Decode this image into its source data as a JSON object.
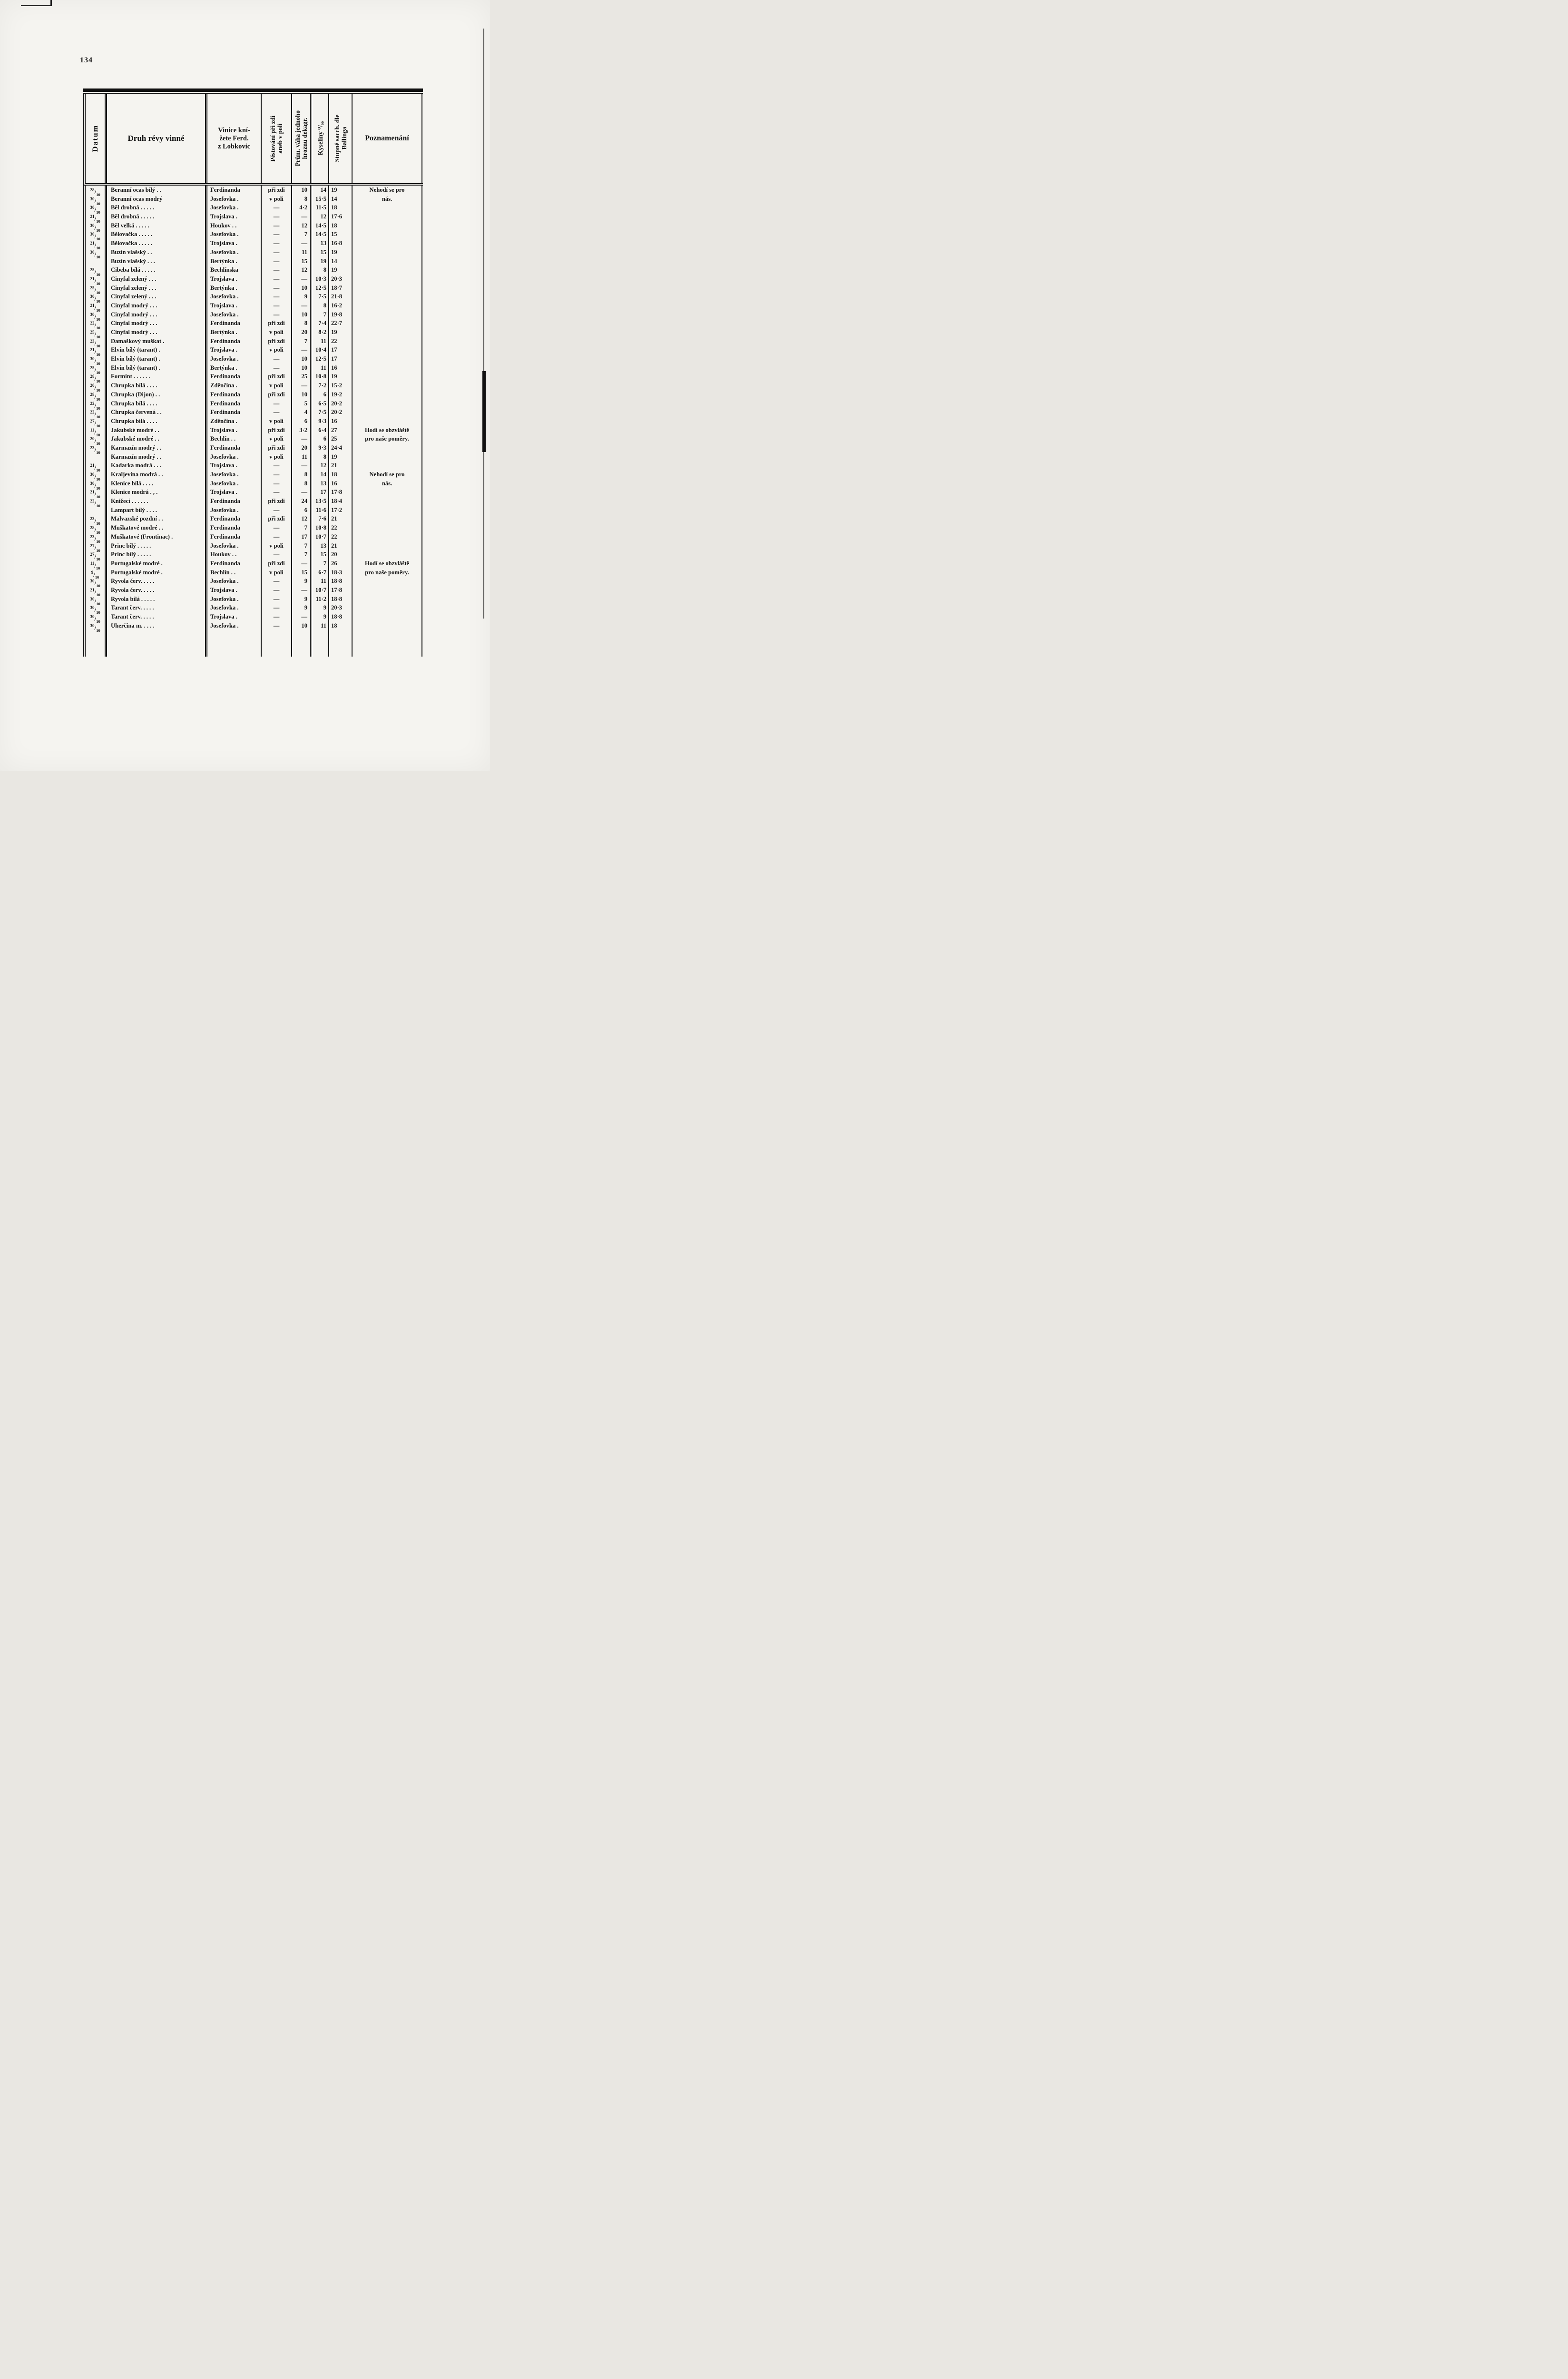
{
  "page": {
    "number": "134"
  },
  "header": {
    "datum": "Datum",
    "druh": "Druh révy vinné",
    "vinice_lines": [
      "Vinice kní-",
      "žete Ferd.",
      "z Lobkovic"
    ],
    "pestovani_lines": [
      "Pěstování při zdi",
      "aneb v poli"
    ],
    "vaha_lines": [
      "Prům. váha jednoho",
      "hroznu dekagr."
    ],
    "kyseliny": "Kyseliny ⁰/₀₀",
    "stupne_lines": [
      "Stupně sacch. dle",
      "Ballinga"
    ],
    "poznamenani": "Poznamenání"
  },
  "table": {
    "rows": [
      {
        "datum_num": "28",
        "datum_den": "10",
        "druh": "Beranní ocas bílý . .",
        "vinice": "Ferdinanda",
        "pestovani": "při zdi",
        "vaha": "10",
        "kyseliny": "14",
        "stupne": "19",
        "poznamenani": "Nehodí se pro"
      },
      {
        "datum_num": "30",
        "datum_den": "10",
        "druh": "Beranní ocas modrý",
        "vinice": "Josefovka .",
        "pestovani": "v poli",
        "vaha": "8",
        "kyseliny": "15·5",
        "stupne": "14",
        "poznamenani": "nás."
      },
      {
        "datum_num": "30",
        "datum_den": "10",
        "druh": "Běl drobná . . . . .",
        "vinice": "Josefovka .",
        "pestovani": "—",
        "vaha": "4·2",
        "kyseliny": "11·5",
        "stupne": "18",
        "poznamenani": ""
      },
      {
        "datum_num": "21",
        "datum_den": "10",
        "druh": "Běl drobná . . . . .",
        "vinice": "Trojslava .",
        "pestovani": "—",
        "vaha": "—",
        "kyseliny": "12",
        "stupne": "17·6",
        "poznamenani": ""
      },
      {
        "datum_num": "30",
        "datum_den": "10",
        "druh": "Běl velká . . . . .",
        "vinice": "Houkov . .",
        "pestovani": "—",
        "vaha": "12",
        "kyseliny": "14·5",
        "stupne": "18",
        "poznamenani": ""
      },
      {
        "datum_num": "30",
        "datum_den": "10",
        "druh": "Bělovačka . . . . .",
        "vinice": "Josefovka .",
        "pestovani": "—",
        "vaha": "7",
        "kyseliny": "14·5",
        "stupne": "15",
        "poznamenani": ""
      },
      {
        "datum_num": "21",
        "datum_den": "10",
        "druh": "Bělovačka . . . . .",
        "vinice": "Trojslava .",
        "pestovani": "—",
        "vaha": "—",
        "kyseliny": "13",
        "stupne": "16·8",
        "poznamenani": ""
      },
      {
        "datum_num": "30",
        "datum_den": "10",
        "druh": "Buzín vlašský . .",
        "vinice": "Josefovka .",
        "pestovani": "—",
        "vaha": "11",
        "kyseliny": "15",
        "stupne": "19",
        "poznamenani": ""
      },
      {
        "datum_num": "",
        "datum_den": "",
        "druh": "Buzín vlašský . . .",
        "vinice": "Bertýnka .",
        "pestovani": "—",
        "vaha": "15",
        "kyseliny": "19",
        "stupne": "14",
        "poznamenani": ""
      },
      {
        "datum_num": "25",
        "datum_den": "10",
        "druh": "Cibeba bílá . . . . .",
        "vinice": "Bechlínska",
        "pestovani": "—",
        "vaha": "12",
        "kyseliny": "8",
        "stupne": "19",
        "poznamenani": ""
      },
      {
        "datum_num": "21",
        "datum_den": "10",
        "druh": "Cinyfal zelený . . .",
        "vinice": "Trojslava .",
        "pestovani": "—",
        "vaha": "—",
        "kyseliny": "10·3",
        "stupne": "20·3",
        "poznamenani": ""
      },
      {
        "datum_num": "25",
        "datum_den": "10",
        "druh": "Cinyfal zelený . . .",
        "vinice": "Bertýnka .",
        "pestovani": "—",
        "vaha": "10",
        "kyseliny": "12·5",
        "stupne": "18·7",
        "poznamenani": ""
      },
      {
        "datum_num": "30",
        "datum_den": "10",
        "druh": "Cinyfal zelený . . .",
        "vinice": "Josefovka .",
        "pestovani": "—",
        "vaha": "9",
        "kyseliny": "7·5",
        "stupne": "21·8",
        "poznamenani": ""
      },
      {
        "datum_num": "21",
        "datum_den": "10",
        "druh": "Cinyfal modrý . . .",
        "vinice": "Trojslava .",
        "pestovani": "—",
        "vaha": "—",
        "kyseliny": "8",
        "stupne": "16·2",
        "poznamenani": ""
      },
      {
        "datum_num": "30",
        "datum_den": "10",
        "druh": "Cinyfal modrý . . .",
        "vinice": "Josefovka .",
        "pestovani": "—",
        "vaha": "10",
        "kyseliny": "7",
        "stupne": "19·8",
        "poznamenani": ""
      },
      {
        "datum_num": "22",
        "datum_den": "10",
        "druh": "Cinyfal modrý . . .",
        "vinice": "Ferdinanda",
        "pestovani": "při zdi",
        "vaha": "8",
        "kyseliny": "7·4",
        "stupne": "22·7",
        "poznamenani": ""
      },
      {
        "datum_num": "25",
        "datum_den": "10",
        "druh": "Cinyfal modrý . . .",
        "vinice": "Bertýnka .",
        "pestovani": "v poli",
        "vaha": "20",
        "kyseliny": "8·2",
        "stupne": "19",
        "poznamenani": ""
      },
      {
        "datum_num": "23",
        "datum_den": "10",
        "druh": "Damaškový muškat .",
        "vinice": "Ferdinanda",
        "pestovani": "při zdi",
        "vaha": "7",
        "kyseliny": "11",
        "stupne": "22",
        "poznamenani": ""
      },
      {
        "datum_num": "21",
        "datum_den": "10",
        "druh": "Elvín bílý (tarant) .",
        "vinice": "Trojslava .",
        "pestovani": "v poli",
        "vaha": "—",
        "kyseliny": "10·4",
        "stupne": "17",
        "poznamenani": ""
      },
      {
        "datum_num": "30",
        "datum_den": "10",
        "druh": "Elvín bílý (tarant) .",
        "vinice": "Josefovka .",
        "pestovani": "—",
        "vaha": "10",
        "kyseliny": "12·5",
        "stupne": "17",
        "poznamenani": ""
      },
      {
        "datum_num": "25",
        "datum_den": "10",
        "druh": "Elvín bílý (tarant) .",
        "vinice": "Bertýnka .",
        "pestovani": "—",
        "vaha": "10",
        "kyseliny": "11",
        "stupne": "16",
        "poznamenani": ""
      },
      {
        "datum_num": "28",
        "datum_den": "10",
        "druh": "Formint . . . . . .",
        "vinice": "Ferdinanda",
        "pestovani": "při zdi",
        "vaha": "25",
        "kyseliny": "10·8",
        "stupne": "19",
        "poznamenani": ""
      },
      {
        "datum_num": "20",
        "datum_den": "10",
        "druh": "Chrupka bílá . . . .",
        "vinice": "Zděnčina .",
        "pestovani": "v poli",
        "vaha": "—",
        "kyseliny": "7·2",
        "stupne": "15·2",
        "poznamenani": ""
      },
      {
        "datum_num": "28",
        "datum_den": "10",
        "druh": "Chrupka (Dijon) . .",
        "vinice": "Ferdinanda",
        "pestovani": "při zdi",
        "vaha": "10",
        "kyseliny": "6",
        "stupne": "19·2",
        "poznamenani": ""
      },
      {
        "datum_num": "22",
        "datum_den": "10",
        "druh": "Chrupka bílá . . . .",
        "vinice": "Ferdinanda",
        "pestovani": "—",
        "vaha": "5",
        "kyseliny": "6·5",
        "stupne": "20·2",
        "poznamenani": ""
      },
      {
        "datum_num": "22",
        "datum_den": "10",
        "druh": "Chrupka červená . .",
        "vinice": "Ferdinanda",
        "pestovani": "—",
        "vaha": "4",
        "kyseliny": "7·5",
        "stupne": "20·2",
        "poznamenani": ""
      },
      {
        "datum_num": "27",
        "datum_den": "10",
        "druh": "Chrupka bílá . . . .",
        "vinice": "Zděnčina .",
        "pestovani": "v poli",
        "vaha": "6",
        "kyseliny": "9·3",
        "stupne": "16",
        "poznamenani": ""
      },
      {
        "datum_num": "11",
        "datum_den": "10",
        "druh": "Jakubské modré . .",
        "vinice": "Trojslava .",
        "pestovani": "při zdi",
        "vaha": "3·2",
        "kyseliny": "6·4",
        "stupne": "27",
        "poznamenani": "Hodí se obzvláště"
      },
      {
        "datum_num": "20",
        "datum_den": "10",
        "druh": "Jakubské modré . .",
        "vinice": "Bechlín . .",
        "pestovani": "v poli",
        "vaha": "—",
        "kyseliny": "6",
        "stupne": "25",
        "poznamenani": "pro naše poměry."
      },
      {
        "datum_num": "23",
        "datum_den": "10",
        "druh": "Karmazín modrý . .",
        "vinice": "Ferdinanda",
        "pestovani": "při zdi",
        "vaha": "20",
        "kyseliny": "9·3",
        "stupne": "24·4",
        "poznamenani": ""
      },
      {
        "datum_num": "",
        "datum_den": "",
        "druh": "Karmazín modrý . .",
        "vinice": "Josefovka .",
        "pestovani": "v poli",
        "vaha": "11",
        "kyseliny": "8",
        "stupne": "19",
        "poznamenani": ""
      },
      {
        "datum_num": "21",
        "datum_den": "10",
        "druh": "Kadarka modrá . . .",
        "vinice": "Trojslava .",
        "pestovani": "—",
        "vaha": "—",
        "kyseliny": "12",
        "stupne": "21",
        "poznamenani": ""
      },
      {
        "datum_num": "30",
        "datum_den": "10",
        "druh": "Kraljevina modrá . .",
        "vinice": "Josefovka .",
        "pestovani": "—",
        "vaha": "8",
        "kyseliny": "14",
        "stupne": "18",
        "poznamenani": "Nehodí se pro"
      },
      {
        "datum_num": "30",
        "datum_den": "10",
        "druh": "Klenice bílá . . . .",
        "vinice": "Josefovka .",
        "pestovani": "—",
        "vaha": "8",
        "kyseliny": "13",
        "stupne": "16",
        "poznamenani": "nás."
      },
      {
        "datum_num": "21",
        "datum_den": "10",
        "druh": "Klenice modrá . , .",
        "vinice": "Trojslava .",
        "pestovani": "—",
        "vaha": "—",
        "kyseliny": "17",
        "stupne": "17·8",
        "poznamenani": ""
      },
      {
        "datum_num": "22",
        "datum_den": "10",
        "druh": "Knížecí . . . . . .",
        "vinice": "Ferdinanda",
        "pestovani": "při zdi",
        "vaha": "24",
        "kyseliny": "13·5",
        "stupne": "18·4",
        "poznamenani": ""
      },
      {
        "datum_num": "",
        "datum_den": "",
        "druh": "Lampart bílý . . . .",
        "vinice": "Josefovka .",
        "pestovani": "—",
        "vaha": "6",
        "kyseliny": "11·6",
        "stupne": "17·2",
        "poznamenani": ""
      },
      {
        "datum_num": "23",
        "datum_den": "10",
        "druh": "Malvazské pozdní . .",
        "vinice": "Ferdinanda",
        "pestovani": "při zdi",
        "vaha": "12",
        "kyseliny": "7·6",
        "stupne": "21",
        "poznamenani": ""
      },
      {
        "datum_num": "28",
        "datum_den": "10",
        "druh": "Muškatové modré . .",
        "vinice": "Ferdinanda",
        "pestovani": "—",
        "vaha": "7",
        "kyseliny": "10·8",
        "stupne": "22",
        "poznamenani": ""
      },
      {
        "datum_num": "23",
        "datum_den": "10",
        "druh": "Muškatové (Frontinac) .",
        "vinice": "Ferdinanda",
        "pestovani": "—",
        "vaha": "17",
        "kyseliny": "10·7",
        "stupne": "22",
        "poznamenani": ""
      },
      {
        "datum_num": "27",
        "datum_den": "10",
        "druh": "Princ bílý . . . . .",
        "vinice": "Josefovka .",
        "pestovani": "v poli",
        "vaha": "7",
        "kyseliny": "13",
        "stupne": "21",
        "poznamenani": ""
      },
      {
        "datum_num": "27",
        "datum_den": "10",
        "druh": "Princ bílý . . . . .",
        "vinice": "Houkov . .",
        "pestovani": "—",
        "vaha": "7",
        "kyseliny": "15",
        "stupne": "20",
        "poznamenani": ""
      },
      {
        "datum_num": "11",
        "datum_den": "10",
        "druh": "Portugalské modré .",
        "vinice": "Ferdinanda",
        "pestovani": "při zdi",
        "vaha": "—",
        "kyseliny": "7",
        "stupne": "26",
        "poznamenani": "Hodí se obzvláště"
      },
      {
        "datum_num": "9",
        "datum_den": "10",
        "druh": "Portugalské modré .",
        "vinice": "Bechlín . .",
        "pestovani": "v poli",
        "vaha": "15",
        "kyseliny": "6·7",
        "stupne": "18·3",
        "poznamenani": "pro naše poměry."
      },
      {
        "datum_num": "30",
        "datum_den": "10",
        "druh": "Ryvola červ. . . . .",
        "vinice": "Josefovka .",
        "pestovani": "—",
        "vaha": "9",
        "kyseliny": "11",
        "stupne": "18·8",
        "poznamenani": ""
      },
      {
        "datum_num": "21",
        "datum_den": "10",
        "druh": "Ryvola červ. . . . .",
        "vinice": "Trojslava .",
        "pestovani": "—",
        "vaha": "—",
        "kyseliny": "10·7",
        "stupne": "17·8",
        "poznamenani": ""
      },
      {
        "datum_num": "30",
        "datum_den": "10",
        "druh": "Ryvola bílá . . . . .",
        "vinice": "Josefovka .",
        "pestovani": "—",
        "vaha": "9",
        "kyseliny": "11·2",
        "stupne": "18·8",
        "poznamenani": ""
      },
      {
        "datum_num": "30",
        "datum_den": "10",
        "druh": "Tarant červ. . . . .",
        "vinice": "Josefovka .",
        "pestovani": "—",
        "vaha": "9",
        "kyseliny": "9",
        "stupne": "20·3",
        "poznamenani": ""
      },
      {
        "datum_num": "30",
        "datum_den": "10",
        "druh": "Tarant červ. . . . .",
        "vinice": "Trojslava .",
        "pestovani": "—",
        "vaha": "—",
        "kyseliny": "9",
        "stupne": "18·8",
        "poznamenani": ""
      },
      {
        "datum_num": "30",
        "datum_den": "10",
        "druh": "Uherčina m. . . . .",
        "vinice": "Josefovka .",
        "pestovani": "—",
        "vaha": "10",
        "kyseliny": "11",
        "stupne": "18",
        "poznamenani": ""
      }
    ]
  }
}
